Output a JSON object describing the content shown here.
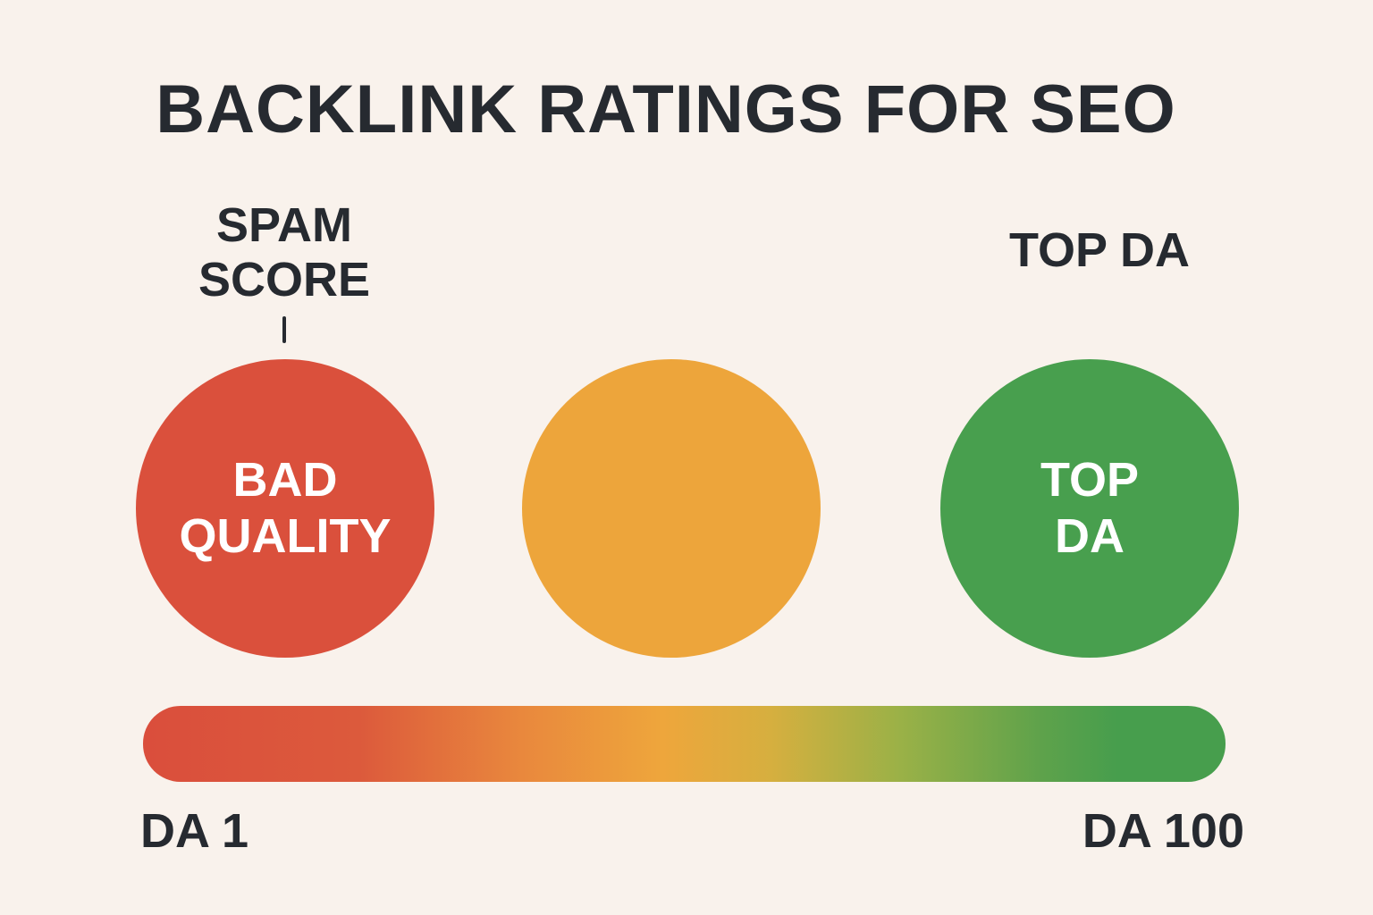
{
  "title": "BACKLINK RATINGS FOR SEO",
  "labels": {
    "spam_score": [
      "SPAM",
      "SCORE"
    ],
    "top_da": "TOP DA"
  },
  "circles": {
    "bad": {
      "lines": [
        "BAD",
        "QUALITY"
      ],
      "color": "#da503c"
    },
    "mid": {
      "lines": [],
      "color": "#eda53b"
    },
    "top": {
      "lines": [
        "TOP",
        "DA"
      ],
      "color": "#489f4e"
    }
  },
  "scale": {
    "min_label": "DA 1",
    "max_label": "DA 100",
    "gradient_colors": [
      "#da4e3c",
      "#eea63c",
      "#479e4d"
    ]
  },
  "colors": {
    "background": "#f9f2ec",
    "text": "#262a30"
  }
}
